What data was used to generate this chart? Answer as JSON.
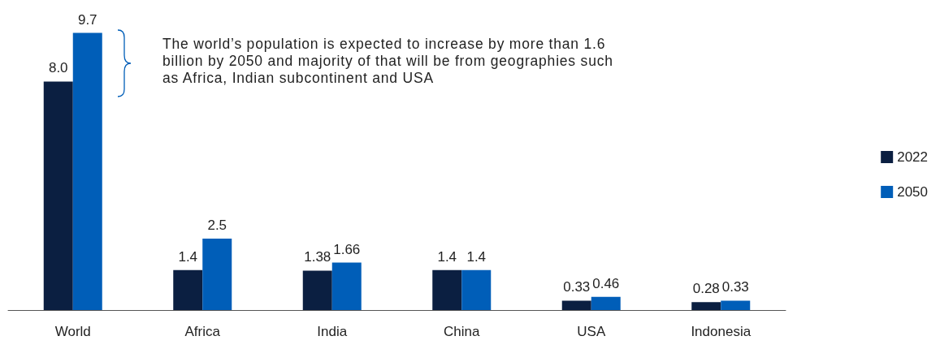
{
  "chart_data": {
    "type": "bar",
    "categories": [
      "World",
      "Africa",
      "India",
      "China",
      "USA",
      "Indonesia"
    ],
    "series": [
      {
        "name": "2022",
        "color": "#0b1f41",
        "values": [
          8.0,
          1.4,
          1.38,
          1.4,
          0.33,
          0.28
        ],
        "value_labels": [
          "8.0",
          "1.4",
          "1.38",
          "1.4",
          "0.33",
          "0.28"
        ]
      },
      {
        "name": "2050",
        "color": "#005eb8",
        "values": [
          9.7,
          2.5,
          1.66,
          1.4,
          0.46,
          0.33
        ],
        "value_labels": [
          "9.7",
          "2.5",
          "1.66",
          "1.4",
          "0.46",
          "0.33"
        ]
      }
    ],
    "annotations": [
      "The world’s population is expected to increase by more than 1.6 billion by 2050 and majority of that will be from geographies such as Africa, Indian subcontinent and USA"
    ],
    "legend": "right"
  }
}
